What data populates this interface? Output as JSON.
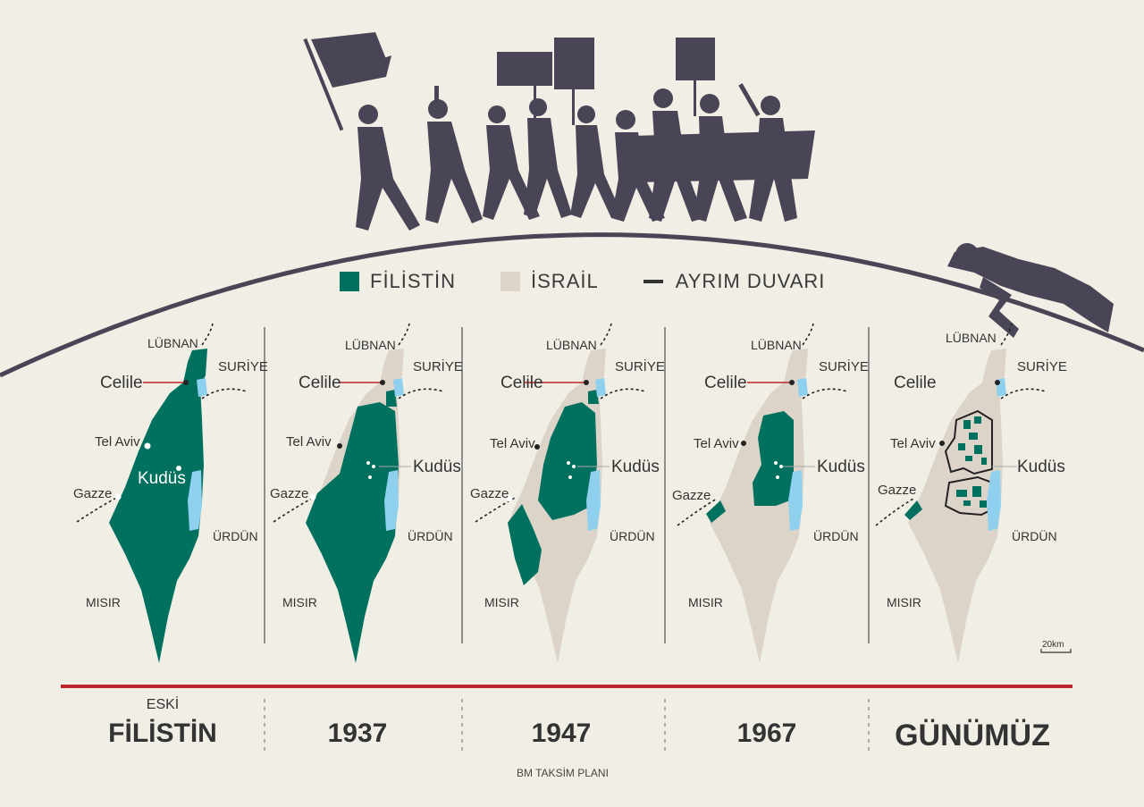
{
  "legend": {
    "filistin": "FİLİSTİN",
    "israil": "İSRAİL",
    "duvar": "AYRIM DUVARI"
  },
  "colors": {
    "filistin": "#00705f",
    "israil": "#ddd4c9",
    "water": "#8ed0ee",
    "silhouette": "#4a4556",
    "redline": "#c0272d",
    "background": "#f1efe5"
  },
  "places": {
    "lubnan": "LÜBNAN",
    "suriye": "SURİYE",
    "celile": "Celile",
    "telaviv": "Tel Aviv",
    "kudus": "Kudüs",
    "gazze": "Gazze",
    "urdun": "ÜRDÜN",
    "misir": "MISIR"
  },
  "eras": [
    {
      "sub": "ESKİ",
      "main": "FİLİSTİN"
    },
    {
      "sub": "",
      "main": "1937"
    },
    {
      "sub": "",
      "main": "1947"
    },
    {
      "sub": "",
      "main": "1967"
    },
    {
      "sub": "",
      "main": "GÜNÜMÜZ"
    }
  ],
  "bm_note": "BM TAKSİM PLANI",
  "scale": "20km"
}
